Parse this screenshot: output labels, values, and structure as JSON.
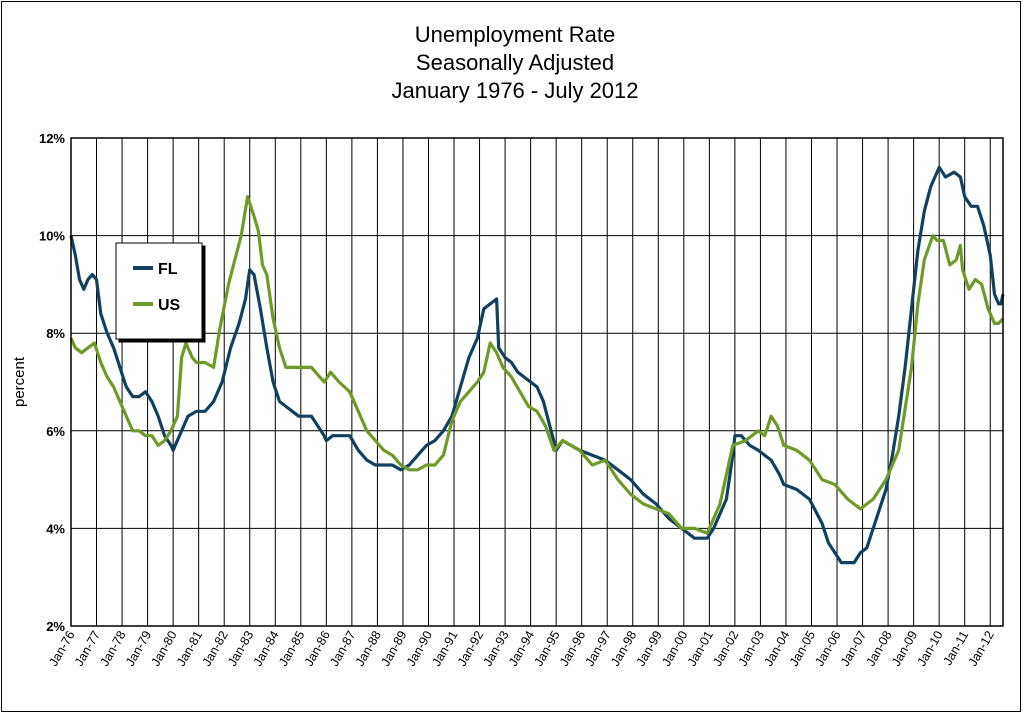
{
  "chart_data": {
    "type": "line",
    "title": [
      "Unemployment Rate",
      "Seasonally Adjusted",
      "January 1976 - July 2012"
    ],
    "xlabel": "",
    "ylabel": "percent",
    "ylim": [
      2,
      12
    ],
    "yticks": [
      "2%",
      "4%",
      "6%",
      "8%",
      "10%",
      "12%"
    ],
    "x_start": "1976-01",
    "x_end": "2012-07",
    "x_ticks": [
      "Jan-76",
      "Jan-77",
      "Jan-78",
      "Jan-79",
      "Jan-80",
      "Jan-81",
      "Jan-82",
      "Jan-83",
      "Jan-84",
      "Jan-85",
      "Jan-86",
      "Jan-87",
      "Jan-88",
      "Jan-89",
      "Jan-90",
      "Jan-91",
      "Jan-92",
      "Jan-93",
      "Jan-94",
      "Jan-95",
      "Jan-96",
      "Jan-97",
      "Jan-98",
      "Jan-99",
      "Jan-00",
      "Jan-01",
      "Jan-02",
      "Jan-03",
      "Jan-04",
      "Jan-05",
      "Jan-06",
      "Jan-07",
      "Jan-08",
      "Jan-09",
      "Jan-10",
      "Jan-11",
      "Jan-12"
    ],
    "grid": true,
    "legend": "top-left",
    "series": [
      {
        "name": "FL",
        "color": "#12405e",
        "points": [
          [
            "1976-01",
            10.0
          ],
          [
            "1976-03",
            9.6
          ],
          [
            "1976-05",
            9.1
          ],
          [
            "1976-07",
            8.9
          ],
          [
            "1976-09",
            9.1
          ],
          [
            "1976-11",
            9.2
          ],
          [
            "1977-01",
            9.1
          ],
          [
            "1977-03",
            8.4
          ],
          [
            "1977-06",
            8.0
          ],
          [
            "1977-09",
            7.7
          ],
          [
            "1977-12",
            7.3
          ],
          [
            "1978-03",
            6.9
          ],
          [
            "1978-06",
            6.7
          ],
          [
            "1978-09",
            6.7
          ],
          [
            "1978-12",
            6.8
          ],
          [
            "1979-03",
            6.6
          ],
          [
            "1979-06",
            6.3
          ],
          [
            "1979-09",
            5.9
          ],
          [
            "1979-12",
            5.7
          ],
          [
            "1980-01",
            5.6
          ],
          [
            "1980-04",
            5.9
          ],
          [
            "1980-08",
            6.3
          ],
          [
            "1980-12",
            6.4
          ],
          [
            "1981-04",
            6.4
          ],
          [
            "1981-08",
            6.6
          ],
          [
            "1981-12",
            7.0
          ],
          [
            "1982-04",
            7.7
          ],
          [
            "1982-08",
            8.2
          ],
          [
            "1982-11",
            8.7
          ],
          [
            "1983-01",
            9.3
          ],
          [
            "1983-03",
            9.2
          ],
          [
            "1983-06",
            8.5
          ],
          [
            "1983-09",
            7.7
          ],
          [
            "1983-12",
            7.0
          ],
          [
            "1984-03",
            6.6
          ],
          [
            "1984-06",
            6.5
          ],
          [
            "1984-09",
            6.4
          ],
          [
            "1984-12",
            6.3
          ],
          [
            "1985-06",
            6.3
          ],
          [
            "1985-09",
            6.1
          ],
          [
            "1985-12",
            5.9
          ],
          [
            "1986-01",
            5.8
          ],
          [
            "1986-04",
            5.9
          ],
          [
            "1986-08",
            5.9
          ],
          [
            "1986-12",
            5.9
          ],
          [
            "1987-04",
            5.6
          ],
          [
            "1987-08",
            5.4
          ],
          [
            "1987-12",
            5.3
          ],
          [
            "1988-04",
            5.3
          ],
          [
            "1988-08",
            5.3
          ],
          [
            "1988-12",
            5.2
          ],
          [
            "1989-04",
            5.3
          ],
          [
            "1989-08",
            5.5
          ],
          [
            "1989-12",
            5.7
          ],
          [
            "1990-04",
            5.8
          ],
          [
            "1990-08",
            6.0
          ],
          [
            "1990-12",
            6.3
          ],
          [
            "1991-04",
            6.9
          ],
          [
            "1991-08",
            7.5
          ],
          [
            "1991-12",
            7.9
          ],
          [
            "1992-03",
            8.5
          ],
          [
            "1992-06",
            8.6
          ],
          [
            "1992-09",
            8.7
          ],
          [
            "1992-10",
            7.7
          ],
          [
            "1993-01",
            7.5
          ],
          [
            "1993-04",
            7.4
          ],
          [
            "1993-07",
            7.2
          ],
          [
            "1993-10",
            7.1
          ],
          [
            "1994-01",
            7.0
          ],
          [
            "1994-04",
            6.9
          ],
          [
            "1994-07",
            6.6
          ],
          [
            "1994-10",
            6.1
          ],
          [
            "1995-01",
            5.6
          ],
          [
            "1995-04",
            5.8
          ],
          [
            "1995-08",
            5.7
          ],
          [
            "1995-12",
            5.6
          ],
          [
            "1996-06",
            5.5
          ],
          [
            "1996-12",
            5.4
          ],
          [
            "1997-06",
            5.2
          ],
          [
            "1997-12",
            5.0
          ],
          [
            "1998-06",
            4.7
          ],
          [
            "1998-12",
            4.5
          ],
          [
            "1999-06",
            4.2
          ],
          [
            "1999-12",
            4.0
          ],
          [
            "2000-06",
            3.8
          ],
          [
            "2000-12",
            3.8
          ],
          [
            "2001-03",
            4.0
          ],
          [
            "2001-06",
            4.3
          ],
          [
            "2001-09",
            4.6
          ],
          [
            "2001-12",
            5.5
          ],
          [
            "2002-01",
            5.9
          ],
          [
            "2002-04",
            5.9
          ],
          [
            "2002-08",
            5.7
          ],
          [
            "2002-12",
            5.6
          ],
          [
            "2003-06",
            5.4
          ],
          [
            "2003-10",
            5.1
          ],
          [
            "2003-12",
            4.9
          ],
          [
            "2004-06",
            4.8
          ],
          [
            "2004-12",
            4.6
          ],
          [
            "2005-06",
            4.1
          ],
          [
            "2005-09",
            3.7
          ],
          [
            "2005-12",
            3.5
          ],
          [
            "2006-03",
            3.3
          ],
          [
            "2006-06",
            3.3
          ],
          [
            "2006-09",
            3.3
          ],
          [
            "2006-12",
            3.5
          ],
          [
            "2007-03",
            3.6
          ],
          [
            "2007-06",
            4.0
          ],
          [
            "2007-09",
            4.4
          ],
          [
            "2007-12",
            4.8
          ],
          [
            "2008-03",
            5.5
          ],
          [
            "2008-06",
            6.3
          ],
          [
            "2008-09",
            7.3
          ],
          [
            "2008-12",
            8.5
          ],
          [
            "2009-03",
            9.7
          ],
          [
            "2009-06",
            10.5
          ],
          [
            "2009-09",
            11.0
          ],
          [
            "2009-12",
            11.3
          ],
          [
            "2010-01",
            11.4
          ],
          [
            "2010-04",
            11.2
          ],
          [
            "2010-08",
            11.3
          ],
          [
            "2010-11",
            11.2
          ],
          [
            "2011-01",
            10.8
          ],
          [
            "2011-04",
            10.6
          ],
          [
            "2011-07",
            10.6
          ],
          [
            "2011-10",
            10.2
          ],
          [
            "2012-01",
            9.6
          ],
          [
            "2012-03",
            8.8
          ],
          [
            "2012-05",
            8.6
          ],
          [
            "2012-06",
            8.6
          ],
          [
            "2012-07",
            8.8
          ]
        ]
      },
      {
        "name": "US",
        "color": "#6f9a2a",
        "points": [
          [
            "1976-01",
            7.9
          ],
          [
            "1976-03",
            7.7
          ],
          [
            "1976-06",
            7.6
          ],
          [
            "1976-09",
            7.7
          ],
          [
            "1976-12",
            7.8
          ],
          [
            "1977-03",
            7.4
          ],
          [
            "1977-06",
            7.1
          ],
          [
            "1977-09",
            6.9
          ],
          [
            "1977-12",
            6.6
          ],
          [
            "1978-03",
            6.3
          ],
          [
            "1978-06",
            6.0
          ],
          [
            "1978-09",
            6.0
          ],
          [
            "1978-12",
            5.9
          ],
          [
            "1979-03",
            5.9
          ],
          [
            "1979-06",
            5.7
          ],
          [
            "1979-09",
            5.8
          ],
          [
            "1979-12",
            6.0
          ],
          [
            "1980-03",
            6.3
          ],
          [
            "1980-05",
            7.5
          ],
          [
            "1980-07",
            7.8
          ],
          [
            "1980-10",
            7.5
          ],
          [
            "1980-12",
            7.4
          ],
          [
            "1981-04",
            7.4
          ],
          [
            "1981-08",
            7.3
          ],
          [
            "1981-11",
            8.1
          ],
          [
            "1982-03",
            9.0
          ],
          [
            "1982-06",
            9.5
          ],
          [
            "1982-09",
            10.0
          ],
          [
            "1982-12",
            10.8
          ],
          [
            "1983-03",
            10.4
          ],
          [
            "1983-05",
            10.1
          ],
          [
            "1983-07",
            9.4
          ],
          [
            "1983-09",
            9.2
          ],
          [
            "1983-12",
            8.3
          ],
          [
            "1984-03",
            7.7
          ],
          [
            "1984-06",
            7.3
          ],
          [
            "1984-09",
            7.3
          ],
          [
            "1984-12",
            7.3
          ],
          [
            "1985-06",
            7.3
          ],
          [
            "1985-12",
            7.0
          ],
          [
            "1986-03",
            7.2
          ],
          [
            "1986-07",
            7.0
          ],
          [
            "1986-12",
            6.8
          ],
          [
            "1987-04",
            6.4
          ],
          [
            "1987-08",
            6.0
          ],
          [
            "1987-12",
            5.8
          ],
          [
            "1988-04",
            5.6
          ],
          [
            "1988-08",
            5.5
          ],
          [
            "1988-12",
            5.3
          ],
          [
            "1989-04",
            5.2
          ],
          [
            "1989-08",
            5.2
          ],
          [
            "1989-12",
            5.3
          ],
          [
            "1990-04",
            5.3
          ],
          [
            "1990-08",
            5.5
          ],
          [
            "1990-12",
            6.2
          ],
          [
            "1991-04",
            6.6
          ],
          [
            "1991-08",
            6.8
          ],
          [
            "1991-12",
            7.0
          ],
          [
            "1992-03",
            7.2
          ],
          [
            "1992-06",
            7.8
          ],
          [
            "1992-09",
            7.6
          ],
          [
            "1992-12",
            7.3
          ],
          [
            "1993-04",
            7.1
          ],
          [
            "1993-08",
            6.8
          ],
          [
            "1993-12",
            6.5
          ],
          [
            "1994-04",
            6.4
          ],
          [
            "1994-08",
            6.1
          ],
          [
            "1994-12",
            5.6
          ],
          [
            "1995-04",
            5.8
          ],
          [
            "1995-08",
            5.7
          ],
          [
            "1995-12",
            5.6
          ],
          [
            "1996-06",
            5.3
          ],
          [
            "1996-12",
            5.4
          ],
          [
            "1997-06",
            5.0
          ],
          [
            "1997-12",
            4.7
          ],
          [
            "1998-06",
            4.5
          ],
          [
            "1998-12",
            4.4
          ],
          [
            "1999-06",
            4.3
          ],
          [
            "1999-12",
            4.0
          ],
          [
            "2000-06",
            4.0
          ],
          [
            "2000-12",
            3.9
          ],
          [
            "2001-06",
            4.5
          ],
          [
            "2001-12",
            5.7
          ],
          [
            "2002-06",
            5.8
          ],
          [
            "2002-12",
            6.0
          ],
          [
            "2003-03",
            5.9
          ],
          [
            "2003-06",
            6.3
          ],
          [
            "2003-09",
            6.1
          ],
          [
            "2003-12",
            5.7
          ],
          [
            "2004-06",
            5.6
          ],
          [
            "2004-12",
            5.4
          ],
          [
            "2005-06",
            5.0
          ],
          [
            "2005-12",
            4.9
          ],
          [
            "2006-06",
            4.6
          ],
          [
            "2006-12",
            4.4
          ],
          [
            "2007-06",
            4.6
          ],
          [
            "2007-12",
            5.0
          ],
          [
            "2008-06",
            5.6
          ],
          [
            "2008-12",
            7.3
          ],
          [
            "2009-03",
            8.6
          ],
          [
            "2009-06",
            9.5
          ],
          [
            "2009-10",
            10.0
          ],
          [
            "2009-12",
            9.9
          ],
          [
            "2010-03",
            9.9
          ],
          [
            "2010-06",
            9.4
          ],
          [
            "2010-09",
            9.5
          ],
          [
            "2010-11",
            9.8
          ],
          [
            "2010-12",
            9.3
          ],
          [
            "2011-03",
            8.9
          ],
          [
            "2011-06",
            9.1
          ],
          [
            "2011-09",
            9.0
          ],
          [
            "2011-12",
            8.5
          ],
          [
            "2012-03",
            8.2
          ],
          [
            "2012-05",
            8.2
          ],
          [
            "2012-07",
            8.3
          ]
        ]
      }
    ]
  }
}
